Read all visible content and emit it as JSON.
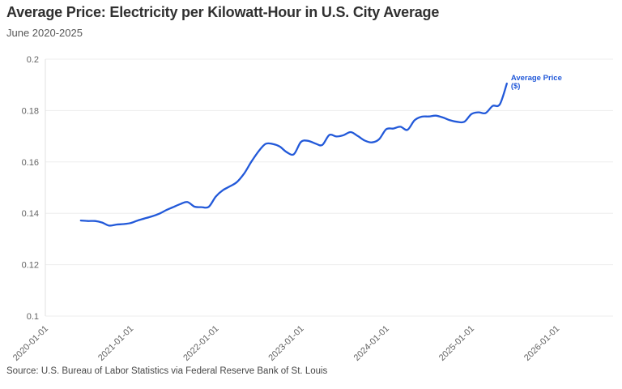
{
  "header": {
    "title": "Average Price: Electricity per Kilowatt-Hour in U.S. City Average",
    "subtitle": "June 2020-2025"
  },
  "footer": {
    "source": "Source: U.S. Bureau of Labor Statistics via Federal Reserve Bank of St. Louis"
  },
  "colors": {
    "line": "#2259d9",
    "legend_text": "#2259d9",
    "grid": "#ededed",
    "axis_line": "#e2e2e2",
    "axis_text": "#636363",
    "background": "#ffffff"
  },
  "chart_data": {
    "type": "line",
    "title": "Average Price: Electricity per Kilowatt-Hour in U.S. City Average",
    "subtitle": "June 2020-2025",
    "xlabel": "",
    "ylabel": "",
    "legend_lines": [
      "Average Price",
      "($)"
    ],
    "legend_position": "end-of-line",
    "grid": "horizontal-only",
    "ylim": [
      0.1,
      0.2
    ],
    "y_ticks": [
      0.2,
      0.18,
      0.16,
      0.14,
      0.12,
      0.1
    ],
    "y_tick_labels": [
      "0.2",
      "0.18",
      "0.16",
      "0.14",
      "0.12",
      "0.1"
    ],
    "x_tick_labels": [
      "2020-01-01",
      "2021-01-01",
      "2022-01-01",
      "2023-01-01",
      "2024-01-01",
      "2025-01-01",
      "2026-01-01"
    ],
    "x": [
      "2020-06",
      "2020-07",
      "2020-08",
      "2020-09",
      "2020-10",
      "2020-11",
      "2020-12",
      "2021-01",
      "2021-02",
      "2021-03",
      "2021-04",
      "2021-05",
      "2021-06",
      "2021-07",
      "2021-08",
      "2021-09",
      "2021-10",
      "2021-11",
      "2021-12",
      "2022-01",
      "2022-02",
      "2022-03",
      "2022-04",
      "2022-05",
      "2022-06",
      "2022-07",
      "2022-08",
      "2022-09",
      "2022-10",
      "2022-11",
      "2022-12",
      "2023-01",
      "2023-02",
      "2023-03",
      "2023-04",
      "2023-05",
      "2023-06",
      "2023-07",
      "2023-08",
      "2023-09",
      "2023-10",
      "2023-11",
      "2023-12",
      "2024-01",
      "2024-02",
      "2024-03",
      "2024-04",
      "2024-05",
      "2024-06",
      "2024-07",
      "2024-08",
      "2024-09",
      "2024-10",
      "2024-11",
      "2024-12",
      "2025-01",
      "2025-02",
      "2025-03",
      "2025-04",
      "2025-05",
      "2025-06"
    ],
    "values": [
      0.1372,
      0.137,
      0.137,
      0.1364,
      0.1352,
      0.1356,
      0.1358,
      0.1362,
      0.1372,
      0.138,
      0.1388,
      0.1398,
      0.1412,
      0.1424,
      0.1436,
      0.1444,
      0.1426,
      0.1424,
      0.1425,
      0.1465,
      0.149,
      0.1505,
      0.1522,
      0.1555,
      0.16,
      0.164,
      0.167,
      0.167,
      0.166,
      0.1638,
      0.163,
      0.1678,
      0.1682,
      0.1672,
      0.1666,
      0.1705,
      0.1699,
      0.1704,
      0.1716,
      0.1701,
      0.1683,
      0.1676,
      0.1688,
      0.1727,
      0.173,
      0.1737,
      0.1725,
      0.1762,
      0.1776,
      0.1777,
      0.178,
      0.1773,
      0.1762,
      0.1756,
      0.1756,
      0.1786,
      0.1793,
      0.179,
      0.1818,
      0.1824,
      0.1905
    ]
  }
}
